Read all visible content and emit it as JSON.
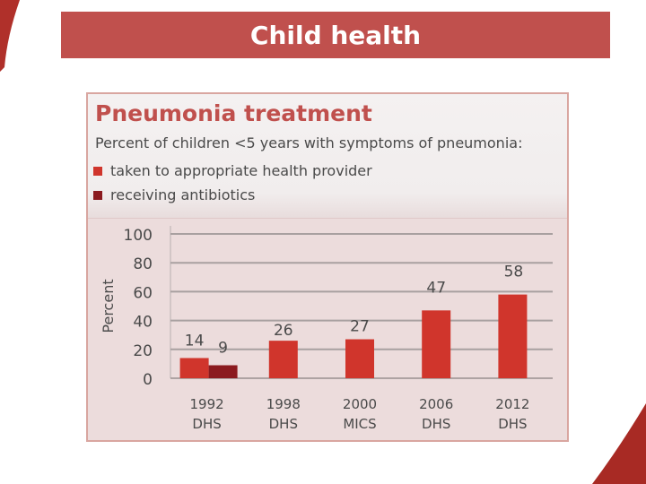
{
  "banner": {
    "title": "Child health"
  },
  "chart_data": {
    "type": "bar",
    "title": "Pneumonia treatment",
    "subtitle": "Percent of children <5 years with symptoms of pneumonia:",
    "ylabel": "Percent",
    "xlabel": "",
    "ylim": [
      0,
      100
    ],
    "yticks": [
      0,
      20,
      40,
      60,
      80,
      100
    ],
    "grid": true,
    "legend_position": "top-left",
    "categories": [
      [
        "1992",
        "DHS"
      ],
      [
        "1998",
        "DHS"
      ],
      [
        "2000",
        "MICS"
      ],
      [
        "2006",
        "DHS"
      ],
      [
        "2012",
        "DHS"
      ]
    ],
    "series": [
      {
        "name": "taken to appropriate health provider",
        "color": "#d0352c",
        "values": [
          14,
          26,
          27,
          47,
          58
        ]
      },
      {
        "name": "receiving antibiotics",
        "color": "#8b1a1f",
        "values": [
          9,
          null,
          null,
          null,
          null
        ]
      }
    ]
  }
}
